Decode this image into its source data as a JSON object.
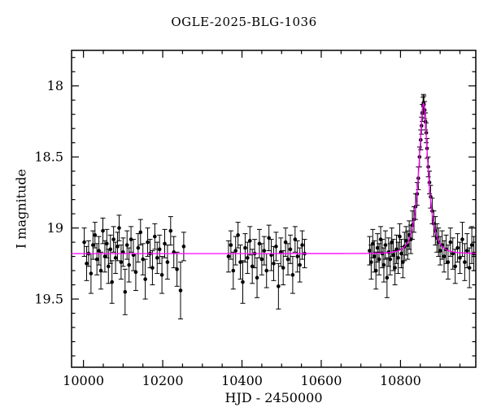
{
  "chart_data": {
    "type": "scatter",
    "title": "OGLE-2025-BLG-1036",
    "xlabel": "HJD - 2450000",
    "ylabel": "I magnitude",
    "xlim": [
      9970,
      10990
    ],
    "ylim_mag": [
      17.75,
      19.98
    ],
    "x_major_ticks": [
      10000,
      10200,
      10400,
      10600,
      10800
    ],
    "x_minor_step": 50,
    "y_major_ticks": [
      18,
      18.5,
      19,
      19.5
    ],
    "y_minor_step": 0.1,
    "axis_color": "#000000",
    "point_color": "#000000",
    "model_color": "#ff00ff",
    "model": {
      "type": "paczynski",
      "t0": 10858,
      "tE": 22,
      "u0": 0.4,
      "baseline_mag": 19.18
    },
    "points": [
      [
        10002,
        19.1,
        0.1
      ],
      [
        10008,
        19.25,
        0.12
      ],
      [
        10013,
        19.18,
        0.09
      ],
      [
        10019,
        19.32,
        0.14
      ],
      [
        10024,
        19.12,
        0.1
      ],
      [
        10029,
        19.05,
        0.09
      ],
      [
        10034,
        19.22,
        0.11
      ],
      [
        10039,
        19.16,
        0.1
      ],
      [
        10044,
        19.3,
        0.13
      ],
      [
        10049,
        19.02,
        0.09
      ],
      [
        10054,
        19.2,
        0.11
      ],
      [
        10059,
        19.11,
        0.1
      ],
      [
        10063,
        19.27,
        0.12
      ],
      [
        10068,
        19.15,
        0.1
      ],
      [
        10072,
        19.38,
        0.15
      ],
      [
        10076,
        19.08,
        0.09
      ],
      [
        10081,
        19.21,
        0.11
      ],
      [
        10086,
        19.13,
        0.1
      ],
      [
        10090,
        19.0,
        0.09
      ],
      [
        10095,
        19.24,
        0.12
      ],
      [
        10100,
        19.17,
        0.1
      ],
      [
        10105,
        19.45,
        0.16
      ],
      [
        10110,
        19.12,
        0.1
      ],
      [
        10115,
        19.26,
        0.12
      ],
      [
        10120,
        19.08,
        0.09
      ],
      [
        10126,
        19.19,
        0.11
      ],
      [
        10132,
        19.31,
        0.13
      ],
      [
        10138,
        19.14,
        0.1
      ],
      [
        10144,
        19.03,
        0.09
      ],
      [
        10150,
        19.22,
        0.11
      ],
      [
        10156,
        19.36,
        0.14
      ],
      [
        10162,
        19.1,
        0.1
      ],
      [
        10168,
        19.18,
        0.1
      ],
      [
        10174,
        19.28,
        0.12
      ],
      [
        10180,
        19.06,
        0.09
      ],
      [
        10186,
        19.21,
        0.11
      ],
      [
        10192,
        19.15,
        0.1
      ],
      [
        10198,
        19.33,
        0.13
      ],
      [
        10205,
        19.11,
        0.1
      ],
      [
        10212,
        19.24,
        0.12
      ],
      [
        10220,
        19.02,
        0.1
      ],
      [
        10228,
        19.17,
        0.11
      ],
      [
        10236,
        19.29,
        0.12
      ],
      [
        10245,
        19.44,
        0.2
      ],
      [
        10253,
        19.13,
        0.1
      ],
      [
        10366,
        19.2,
        0.11
      ],
      [
        10372,
        19.12,
        0.1
      ],
      [
        10378,
        19.3,
        0.13
      ],
      [
        10384,
        19.16,
        0.1
      ],
      [
        10390,
        19.05,
        0.09
      ],
      [
        10396,
        19.24,
        0.12
      ],
      [
        10402,
        19.38,
        0.15
      ],
      [
        10408,
        19.14,
        0.1
      ],
      [
        10414,
        19.21,
        0.11
      ],
      [
        10420,
        19.09,
        0.1
      ],
      [
        10426,
        19.27,
        0.12
      ],
      [
        10432,
        19.18,
        0.1
      ],
      [
        10438,
        19.35,
        0.14
      ],
      [
        10444,
        19.11,
        0.1
      ],
      [
        10450,
        19.22,
        0.11
      ],
      [
        10456,
        19.16,
        0.1
      ],
      [
        10462,
        19.3,
        0.12
      ],
      [
        10468,
        19.07,
        0.09
      ],
      [
        10474,
        19.19,
        0.11
      ],
      [
        10480,
        19.25,
        0.12
      ],
      [
        10486,
        19.13,
        0.1
      ],
      [
        10492,
        19.41,
        0.16
      ],
      [
        10498,
        19.17,
        0.1
      ],
      [
        10504,
        19.28,
        0.12
      ],
      [
        10510,
        19.1,
        0.1
      ],
      [
        10516,
        19.22,
        0.11
      ],
      [
        10522,
        19.15,
        0.1
      ],
      [
        10528,
        19.33,
        0.13
      ],
      [
        10534,
        19.08,
        0.09
      ],
      [
        10540,
        19.2,
        0.11
      ],
      [
        10546,
        19.26,
        0.12
      ],
      [
        10552,
        19.12,
        0.1
      ],
      [
        10558,
        19.18,
        0.1
      ],
      [
        10722,
        19.16,
        0.1
      ],
      [
        10726,
        19.24,
        0.12
      ],
      [
        10730,
        19.11,
        0.1
      ],
      [
        10734,
        19.2,
        0.11
      ],
      [
        10738,
        19.3,
        0.13
      ],
      [
        10742,
        19.14,
        0.1
      ],
      [
        10746,
        19.22,
        0.11
      ],
      [
        10750,
        19.08,
        0.09
      ],
      [
        10754,
        19.18,
        0.1
      ],
      [
        10758,
        19.26,
        0.12
      ],
      [
        10762,
        19.12,
        0.1
      ],
      [
        10766,
        19.35,
        0.14
      ],
      [
        10770,
        19.17,
        0.1
      ],
      [
        10774,
        19.22,
        0.11
      ],
      [
        10778,
        19.1,
        0.1
      ],
      [
        10782,
        19.19,
        0.11
      ],
      [
        10786,
        19.28,
        0.12
      ],
      [
        10790,
        19.15,
        0.1
      ],
      [
        10794,
        19.21,
        0.11
      ],
      [
        10798,
        19.06,
        0.09
      ],
      [
        10802,
        19.18,
        0.1
      ],
      [
        10806,
        19.24,
        0.11
      ],
      [
        10810,
        19.13,
        0.1
      ],
      [
        10814,
        19.09,
        0.1
      ],
      [
        10818,
        19.12,
        0.1
      ],
      [
        10822,
        19.05,
        0.1
      ],
      [
        10826,
        19.08,
        0.1
      ],
      [
        10830,
        18.98,
        0.1
      ],
      [
        10834,
        18.94,
        0.09
      ],
      [
        10838,
        18.85,
        0.09
      ],
      [
        10842,
        18.76,
        0.08
      ],
      [
        10845,
        18.65,
        0.08
      ],
      [
        10848,
        18.5,
        0.07
      ],
      [
        10851,
        18.38,
        0.07
      ],
      [
        10853,
        18.28,
        0.06
      ],
      [
        10855,
        18.19,
        0.06
      ],
      [
        10857,
        18.14,
        0.06
      ],
      [
        10858,
        18.12,
        0.06
      ],
      [
        10859,
        18.13,
        0.06
      ],
      [
        10861,
        18.17,
        0.06
      ],
      [
        10863,
        18.25,
        0.06
      ],
      [
        10865,
        18.33,
        0.07
      ],
      [
        10867,
        18.44,
        0.07
      ],
      [
        10870,
        18.57,
        0.07
      ],
      [
        10873,
        18.68,
        0.08
      ],
      [
        10876,
        18.78,
        0.08
      ],
      [
        10880,
        18.88,
        0.09
      ],
      [
        10884,
        18.97,
        0.09
      ],
      [
        10888,
        19.02,
        0.1
      ],
      [
        10892,
        19.07,
        0.1
      ],
      [
        10896,
        19.1,
        0.1
      ],
      [
        10900,
        19.16,
        0.1
      ],
      [
        10905,
        19.12,
        0.1
      ],
      [
        10910,
        19.2,
        0.11
      ],
      [
        10915,
        19.15,
        0.1
      ],
      [
        10920,
        19.24,
        0.12
      ],
      [
        10926,
        19.1,
        0.1
      ],
      [
        10932,
        19.18,
        0.11
      ],
      [
        10938,
        19.27,
        0.12
      ],
      [
        10944,
        19.14,
        0.1
      ],
      [
        10950,
        19.21,
        0.11
      ],
      [
        10956,
        19.08,
        0.12
      ],
      [
        10962,
        19.24,
        0.13
      ],
      [
        10968,
        19.16,
        0.12
      ],
      [
        10974,
        19.28,
        0.14
      ],
      [
        10980,
        19.12,
        0.13
      ],
      [
        10985,
        19.18,
        0.12
      ]
    ]
  }
}
